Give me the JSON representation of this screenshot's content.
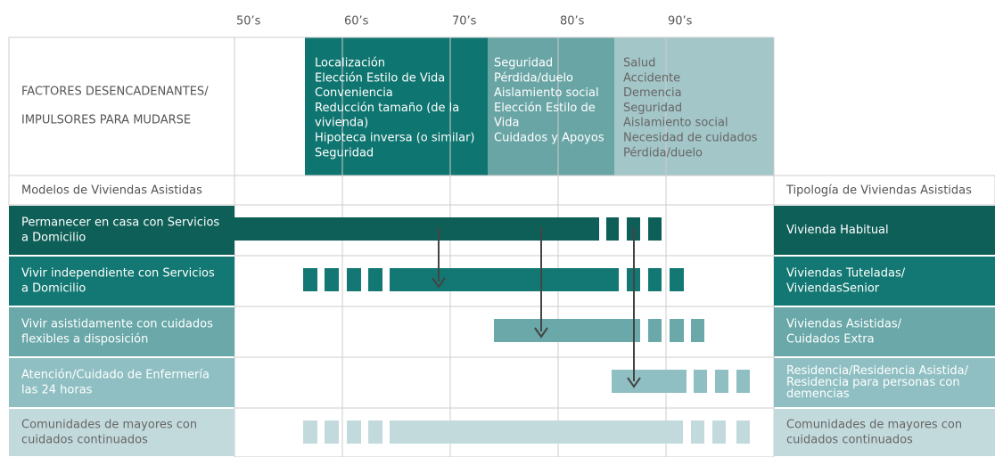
{
  "decades": [
    "50’s",
    "60’s",
    "70’s",
    "80’s",
    "90’s"
  ],
  "header": {
    "label": [
      "FACTORES DESENCADENANTES/",
      "IMPULSORES PARA MUDARSE"
    ],
    "factors": [
      [
        "Localización",
        "Elección Estilo de Vida",
        "Conveniencia",
        "Reducción tamaño (de la",
        "vivienda)",
        "Hipoteca inversa (o similar)",
        "Seguridad"
      ],
      [
        "Seguridad",
        "Pérdida/duelo",
        "Aislamiento social",
        "Elección Estilo de",
        "Vida",
        "Cuidados y Apoyos"
      ],
      [
        "Salud",
        "Accidente",
        "Demencia",
        "Seguridad",
        "Aislamiento social",
        "Necesidad de cuidados",
        "Pérdida/duelo"
      ]
    ]
  },
  "columns": {
    "left": "Modelos de Viviendas Asistidas",
    "right": "Tipología de Viviendas Asistidas"
  },
  "rows": [
    {
      "model": [
        "Permanecer en casa con Servicios",
        "a Domicilio"
      ],
      "type": [
        "Vivienda Habitual"
      ]
    },
    {
      "model": [
        "Vivir independiente con Servicios",
        "a Domicilio"
      ],
      "type": [
        "Viviendas Tuteladas/",
        "ViviendasSenior"
      ]
    },
    {
      "model": [
        "Vivir asistidamente con cuidados",
        "flexibles a disposición"
      ],
      "type": [
        "Viviendas Asistidas/",
        "Cuidados Extra"
      ]
    },
    {
      "model": [
        "Atención/Cuidado de Enfermería",
        "las 24 horas"
      ],
      "type": [
        "Residencia/Residencia Asistida/",
        "Residencia para personas con",
        "demencias"
      ]
    },
    {
      "model": [
        "Comunidades de mayores con",
        "cuidados continuados"
      ],
      "type": [
        "Comunidades de mayores con",
        "cuidados continuados"
      ]
    }
  ]
}
